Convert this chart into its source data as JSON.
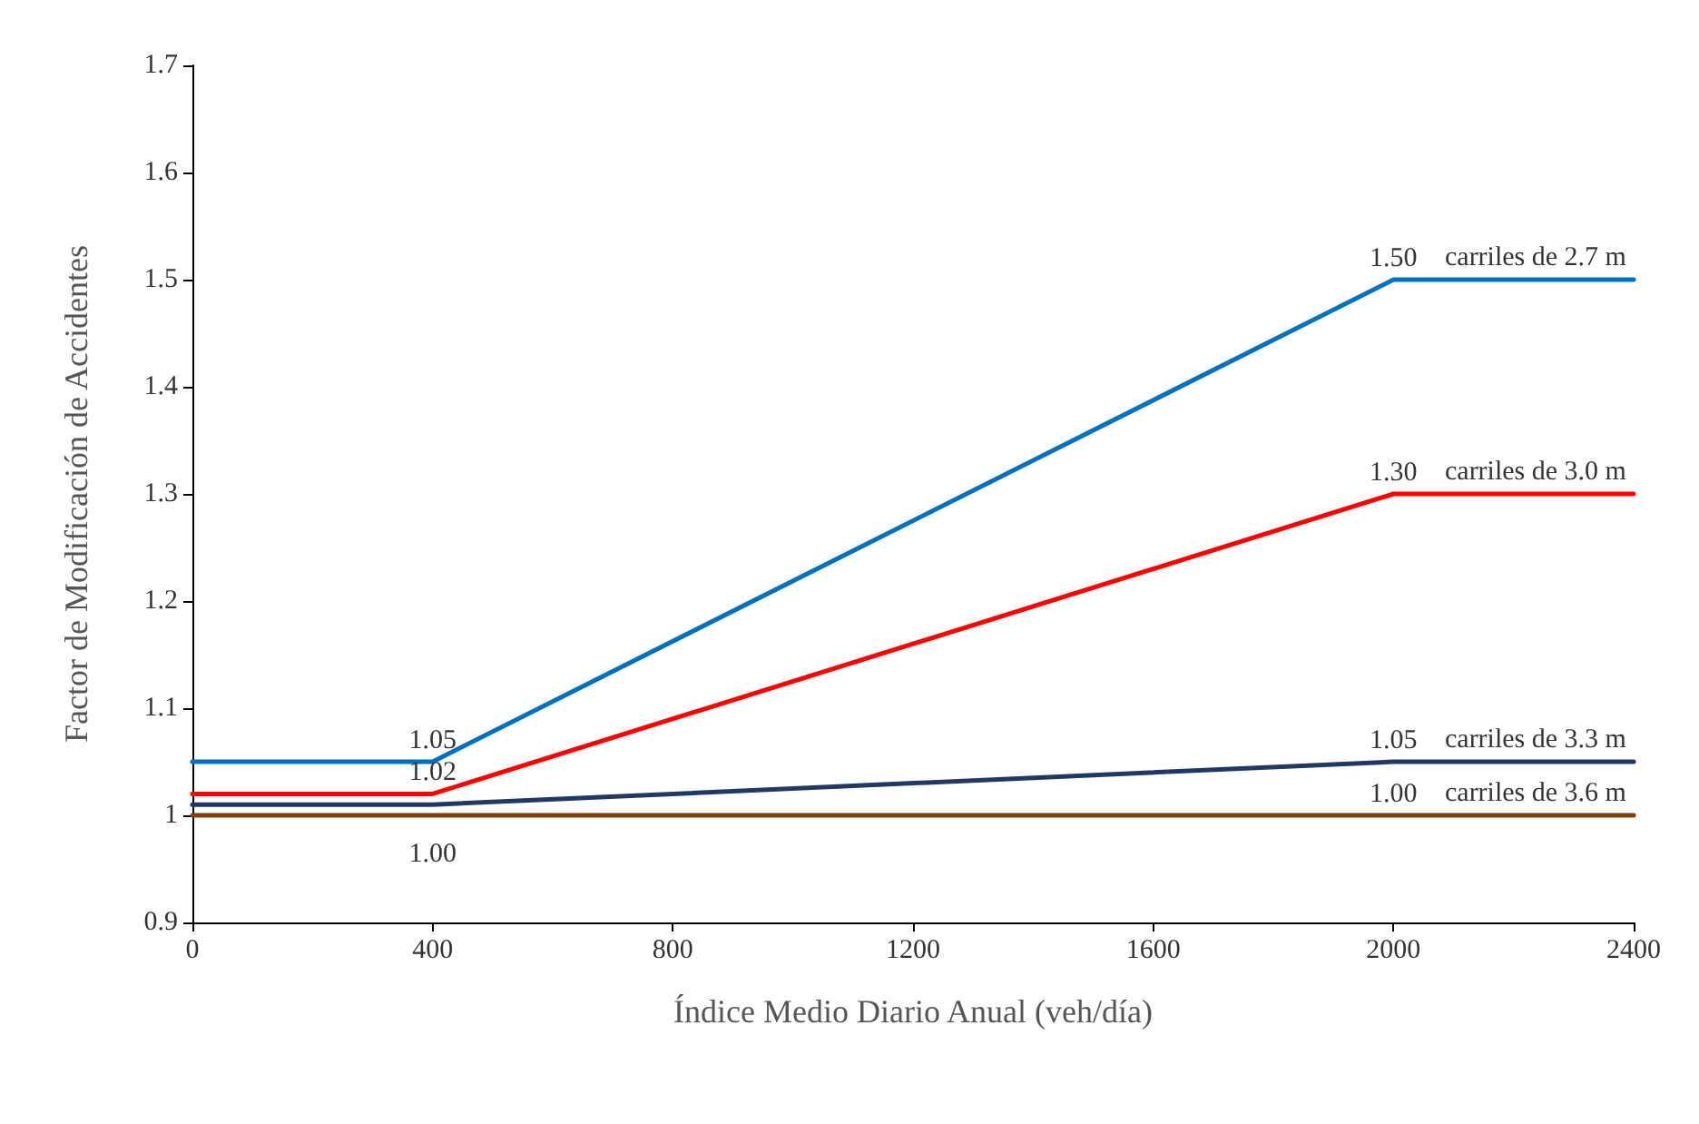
{
  "chart_data": {
    "type": "line",
    "xlabel": "Índice Medio Diario Anual (veh/día)",
    "ylabel": "Factor de Modificación de Accidentes",
    "x": [
      0,
      400,
      2000,
      2400
    ],
    "series": [
      {
        "name": "carriles de 2.7 m",
        "color": "#0070c0",
        "values": [
          1.05,
          1.05,
          1.5,
          1.5
        ],
        "value_labels": [
          null,
          "1.05",
          "1.50",
          null
        ]
      },
      {
        "name": "carriles de 3.0 m",
        "color": "#ff0000",
        "values": [
          1.02,
          1.02,
          1.3,
          1.3
        ],
        "value_labels": [
          null,
          "1.02",
          "1.30",
          null
        ]
      },
      {
        "name": "carriles de 3.3 m",
        "color": "#203864",
        "values": [
          1.01,
          1.01,
          1.05,
          1.05
        ],
        "value_labels": [
          null,
          null,
          "1.05",
          null
        ]
      },
      {
        "name": "carriles de 3.6 m",
        "color": "#843c0c",
        "values": [
          1.0,
          1.0,
          1.0,
          1.0
        ],
        "value_labels": [
          null,
          "1.00",
          "1.00",
          null
        ]
      }
    ],
    "xlim": [
      0,
      2400
    ],
    "xticks": [
      0,
      400,
      800,
      1200,
      1600,
      2000,
      2400
    ],
    "ylim": [
      0.9,
      1.7
    ],
    "yticks": [
      0.9,
      1,
      1.1,
      1.2,
      1.3,
      1.4,
      1.5,
      1.6,
      1.7
    ],
    "grid": false,
    "legend": false,
    "marker": "none",
    "line_style": "solid"
  }
}
